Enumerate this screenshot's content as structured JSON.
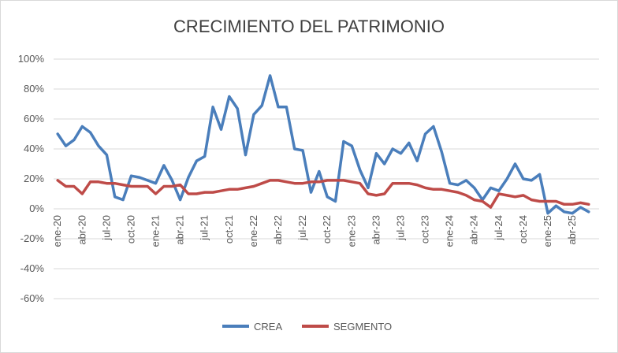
{
  "chart_data": {
    "type": "line",
    "title": "CRECIMIENTO DEL PATRIMONIO",
    "ylim": [
      -60,
      100
    ],
    "y_ticks": [
      "100%",
      "80%",
      "60%",
      "40%",
      "20%",
      "0%",
      "-20%",
      "-40%",
      "-60%"
    ],
    "y_tick_values": [
      100,
      80,
      60,
      40,
      20,
      0,
      -20,
      -40,
      -60
    ],
    "x_tick_labels": [
      "ene-20",
      "abr-20",
      "jul-20",
      "oct-20",
      "ene-21",
      "abr-21",
      "jul-21",
      "oct-21",
      "ene-22",
      "abr-22",
      "jul-22",
      "oct-22",
      "ene-23",
      "abr-23",
      "jul-23",
      "oct-23",
      "ene-24",
      "abr-24",
      "jul-24",
      "oct-24",
      "ene-25",
      "abr-25"
    ],
    "grid": true,
    "legend_position": "bottom",
    "colors": {
      "CREA": "#4a7ebb",
      "SEGMENTO": "#be4b48"
    },
    "series": [
      {
        "name": "CREA",
        "values": [
          50,
          42,
          46,
          55,
          51,
          42,
          36,
          8,
          6,
          22,
          21,
          19,
          17,
          29,
          19,
          6,
          21,
          32,
          35,
          68,
          53,
          75,
          67,
          36,
          63,
          69,
          89,
          68,
          68,
          40,
          39,
          11,
          25,
          8,
          5,
          45,
          42,
          26,
          14,
          37,
          30,
          40,
          37,
          44,
          32,
          50,
          55,
          38,
          17,
          16,
          19,
          14,
          6,
          14,
          12,
          20,
          30,
          20,
          19,
          23,
          -3,
          2,
          -2,
          -3,
          1,
          -2
        ],
        "color": "#4a7ebb"
      },
      {
        "name": "SEGMENTO",
        "values": [
          19,
          15,
          15,
          10,
          18,
          18,
          17,
          17,
          16,
          15,
          15,
          15,
          10,
          15,
          15,
          16,
          10,
          10,
          11,
          11,
          12,
          13,
          13,
          14,
          15,
          17,
          19,
          19,
          18,
          17,
          17,
          18,
          18,
          19,
          19,
          19,
          18,
          17,
          10,
          9,
          10,
          17,
          17,
          17,
          16,
          14,
          13,
          13,
          12,
          11,
          9,
          6,
          5,
          1,
          10,
          9,
          8,
          9,
          6,
          5,
          5,
          5,
          3,
          3,
          4,
          3
        ]
      }
    ]
  }
}
